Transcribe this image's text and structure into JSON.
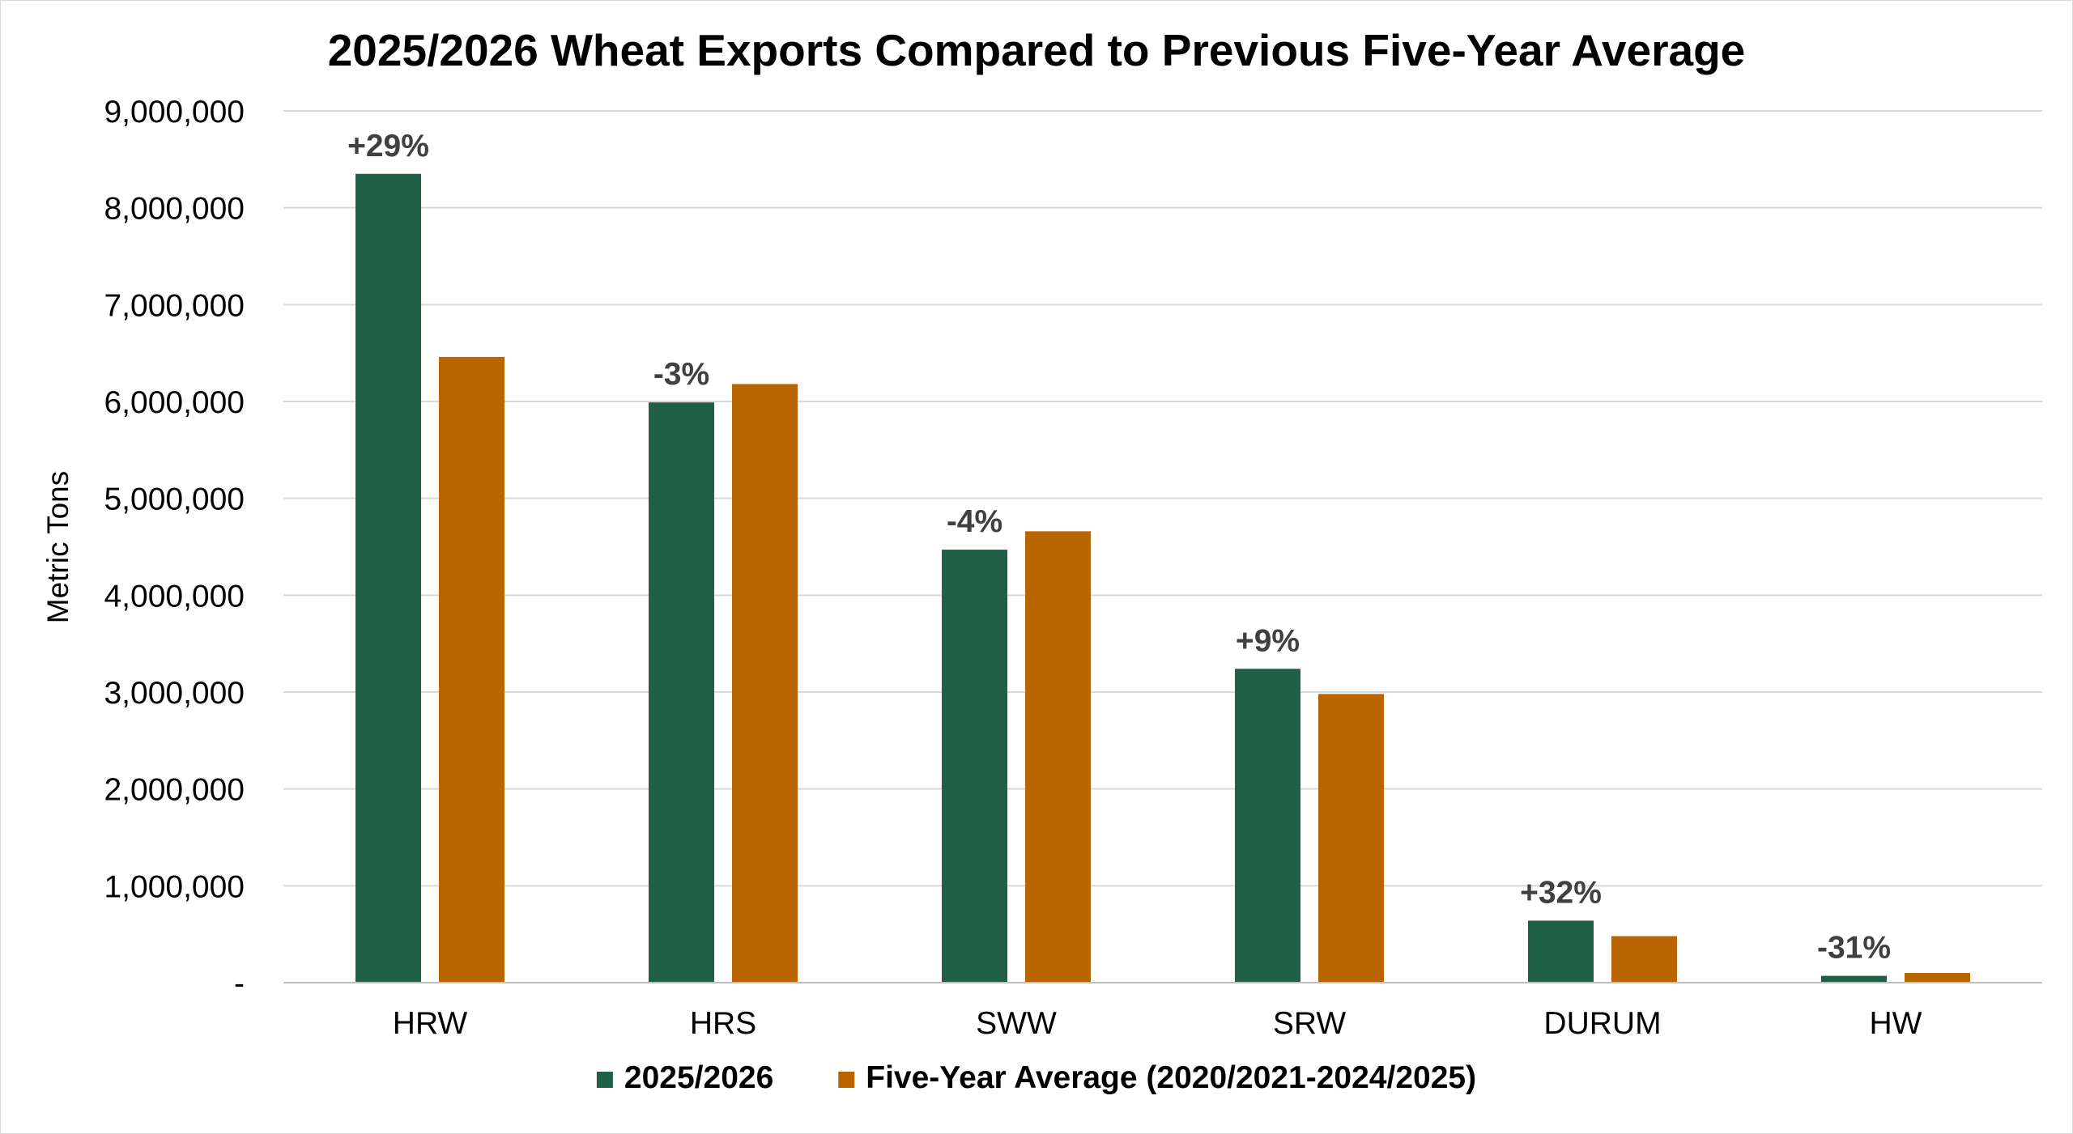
{
  "chart_data": {
    "type": "bar",
    "title": "2025/2026 Wheat Exports Compared to Previous Five-Year Average",
    "xlabel": "",
    "ylabel": "Metric Tons",
    "ylim": [
      0,
      9000000
    ],
    "yticks": [
      0,
      1000000,
      2000000,
      3000000,
      4000000,
      5000000,
      6000000,
      7000000,
      8000000,
      9000000
    ],
    "ytick_labels": [
      "-",
      "1,000,000",
      "2,000,000",
      "3,000,000",
      "4,000,000",
      "5,000,000",
      "6,000,000",
      "7,000,000",
      "8,000,000",
      "9,000,000"
    ],
    "categories": [
      "HRW",
      "HRS",
      "SWW",
      "SRW",
      "DURUM",
      "HW"
    ],
    "series": [
      {
        "name": "2025/2026",
        "color": "#1f6047",
        "values": [
          8350000,
          5990000,
          4470000,
          3240000,
          640000,
          70000
        ]
      },
      {
        "name": "Five-Year Average (2020/2021-2024/2025)",
        "color": "#b86500",
        "values": [
          6460000,
          6180000,
          4660000,
          2980000,
          480000,
          100000
        ]
      }
    ],
    "annotations": [
      "+29%",
      "-3%",
      "-4%",
      "+9%",
      "+32%",
      "-31%"
    ],
    "grid": true,
    "legend": "bottom"
  }
}
